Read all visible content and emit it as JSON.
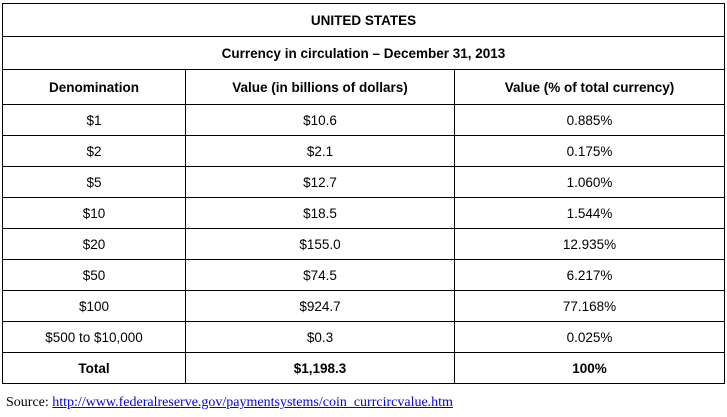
{
  "title": "UNITED STATES",
  "subtitle": "Currency in circulation – December 31, 2013",
  "headers": [
    "Denomination",
    "Value (in billions of dollars)",
    "Value (% of total currency)"
  ],
  "rows": [
    [
      "$1",
      "$10.6",
      "0.885%"
    ],
    [
      "$2",
      "$2.1",
      "0.175%"
    ],
    [
      "$5",
      "$12.7",
      "1.060%"
    ],
    [
      "$10",
      "$18.5",
      "1.544%"
    ],
    [
      "$20",
      "$155.0",
      "12.935%"
    ],
    [
      "$50",
      "$74.5",
      "6.217%"
    ],
    [
      "$100",
      "$924.7",
      "77.168%"
    ],
    [
      "$500 to $10,000",
      "$0.3",
      "0.025%"
    ]
  ],
  "total": [
    "Total",
    "$1,198.3",
    "100%"
  ],
  "source": {
    "label": "Source:",
    "url": "http://www.federalreserve.gov/paymentsystems/coin_currcircvalue.htm"
  }
}
